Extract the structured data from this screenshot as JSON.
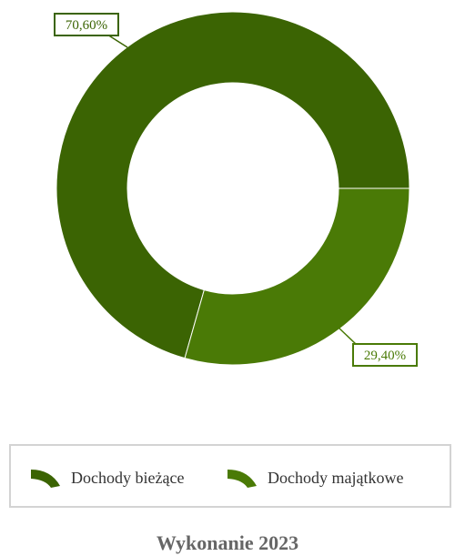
{
  "chart_data": {
    "type": "pie",
    "variant": "donut",
    "title": "Wykonanie 2023",
    "series": [
      {
        "name": "Dochody bieżące",
        "value": 70.6,
        "label": "70,60%",
        "color": "#3b6403"
      },
      {
        "name": "Dochody majątkowe",
        "value": 29.4,
        "label": "29,40%",
        "color": "#4a7a06"
      }
    ],
    "legend_position": "bottom"
  }
}
